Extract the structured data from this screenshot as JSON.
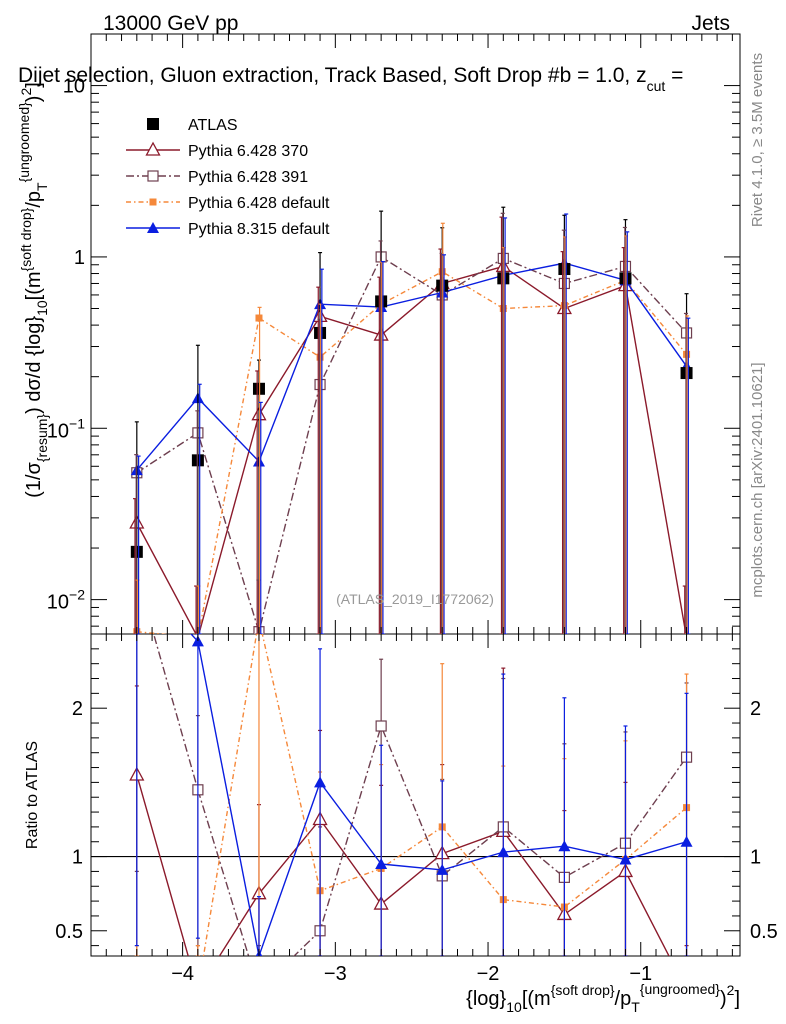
{
  "header": {
    "energy": "13000 GeV pp",
    "category": "Jets",
    "title": "Dijet selection, Gluon extraction, Track Based, Soft Drop #b = 1.0, z",
    "title_sub": "cut",
    "title_tail": " =",
    "rivet": "Rivet 4.1.0, ≥ 3.5M events",
    "mcplots": "mcplots.cern.ch [arXiv:2401.10621]",
    "analysis": "(ATLAS_2019_I1772062)"
  },
  "main_ylabel": {
    "p1": "(1/σ",
    "sub1": "{resum}",
    "p2": ") dσ/d {log}",
    "sub2": "10",
    "p3": "[(m",
    "sup3": "{soft drop}",
    "p4": "/p",
    "sub4": "T",
    "sup4": "{ungroomed}",
    "p5": ")",
    "sup5": "2",
    "p6": "]"
  },
  "ratio_ylabel": "Ratio to ATLAS",
  "xlabel": {
    "p1": "{log}",
    "sub1": "10",
    "p2": "[(m",
    "sup2": "{soft drop}",
    "p3": "/p",
    "sub3": "T",
    "sup3": "{ungroomed}",
    "p4": ")",
    "sup4": "2",
    "p5": "]"
  },
  "colors": {
    "atlas": "#000000",
    "py6_370": "#8b1a2b",
    "py6_391": "#6e3f4f",
    "py6_default": "#f5883a",
    "py8_default": "#0a1ee0"
  },
  "chart_data": {
    "type": "scatter",
    "x": [
      -4.3,
      -3.9,
      -3.5,
      -3.1,
      -2.7,
      -2.3,
      -1.9,
      -1.5,
      -1.1,
      -0.7
    ],
    "x_ticks": [
      -4,
      -3,
      -2,
      -1
    ],
    "x_tick_labels": [
      "−4",
      "−3",
      "−2",
      "−1"
    ],
    "xlim": [
      -4.6,
      -0.35
    ],
    "main": {
      "yscale": "log",
      "ylim": [
        0.0063,
        20
      ],
      "y_ticks": [
        0.01,
        0.1,
        1,
        10
      ],
      "y_tick_labels": [
        "10^{-2}",
        "10^{-1}",
        "1",
        "10"
      ]
    },
    "ratio": {
      "ylim": [
        0.33,
        2.5
      ],
      "y_ticks": [
        0.5,
        1,
        2
      ],
      "y_tick_labels": [
        "0.5",
        "1",
        "2"
      ],
      "reference": 1
    },
    "legend_position": "top-left",
    "series": [
      {
        "name": "ATLAS",
        "style": "data",
        "color_key": "atlas",
        "values": [
          0.019,
          0.065,
          0.17,
          0.36,
          0.55,
          0.68,
          0.75,
          0.85,
          0.75,
          0.21
        ],
        "err_lo": [
          0.019,
          0.065,
          0.17,
          0.36,
          0.55,
          0.68,
          0.75,
          0.85,
          0.75,
          0.21
        ],
        "err_hi": [
          0.09,
          0.24,
          0.08,
          0.7,
          1.3,
          0.8,
          1.2,
          0.9,
          0.9,
          0.4
        ]
      },
      {
        "name": "Pythia 6.428 370",
        "style": "triangle-open",
        "line": "solid",
        "color_key": "py6_370",
        "values": [
          0.028,
          0.006,
          0.12,
          0.45,
          0.35,
          0.7,
          0.88,
          0.5,
          0.68,
          0.006
        ],
        "ratio": [
          1.55,
          0.1,
          0.75,
          1.25,
          0.68,
          1.02,
          1.17,
          0.61,
          0.9,
          0.1
        ],
        "ratio_err_lo": [
          1.3,
          0.3,
          0.7,
          1.0,
          0.7,
          0.8,
          1.0,
          0.6,
          0.7,
          0.3
        ],
        "ratio_err_hi": [
          0.6,
          0.3,
          0.6,
          0.6,
          0.8,
          0.6,
          1.1,
          0.7,
          0.6,
          0.3
        ]
      },
      {
        "name": "Pythia 6.428 391",
        "style": "square-open",
        "line": "dashdot",
        "color_key": "py6_391",
        "values": [
          0.055,
          0.094,
          0.0065,
          0.18,
          1.0,
          0.6,
          0.98,
          0.7,
          0.88,
          0.36
        ],
        "ratio": [
          2.9,
          1.45,
          0.1,
          0.5,
          1.88,
          0.87,
          1.2,
          0.86,
          1.09,
          1.67
        ],
        "ratio_err_lo": [
          2.0,
          1.2,
          0.3,
          0.5,
          1.6,
          0.8,
          1.0,
          0.8,
          0.9,
          1.4
        ],
        "ratio_err_hi": [
          0.8,
          0.5,
          0.3,
          0.7,
          0.45,
          0.65,
          1.0,
          0.9,
          0.75,
          0.5
        ]
      },
      {
        "name": "Pythia 6.428 default",
        "style": "square-filled-small",
        "line": "dashdot-fine",
        "color_key": "py6_default",
        "values": [
          0.0065,
          0.006,
          0.44,
          0.26,
          0.53,
          0.82,
          0.5,
          0.52,
          0.73,
          0.27
        ],
        "ratio": [
          0.1,
          0.1,
          2.6,
          0.77,
          0.92,
          1.2,
          0.71,
          0.66,
          0.98,
          1.33
        ],
        "ratio_err_lo": [
          0.3,
          0.3,
          2.3,
          0.7,
          0.8,
          1.0,
          0.7,
          0.6,
          0.8,
          1.1
        ],
        "ratio_err_hi": [
          0.3,
          0.3,
          0.4,
          0.8,
          0.7,
          1.1,
          0.9,
          1.0,
          0.8,
          0.9
        ]
      },
      {
        "name": "Pythia 8.315 default",
        "style": "triangle-filled",
        "line": "solid",
        "color_key": "py8_default",
        "values": [
          0.057,
          0.15,
          0.064,
          0.53,
          0.51,
          0.62,
          0.78,
          0.92,
          0.73,
          0.23
        ],
        "ratio": [
          2.9,
          2.45,
          0.33,
          1.5,
          0.95,
          0.91,
          1.03,
          1.07,
          0.98,
          1.1
        ],
        "ratio_err_lo": [
          2.5,
          2.0,
          0.3,
          1.3,
          0.9,
          0.8,
          0.9,
          1.0,
          0.9,
          0.9
        ],
        "ratio_err_hi": [
          0.6,
          0.5,
          0.4,
          0.9,
          0.8,
          0.6,
          1.2,
          1.0,
          0.9,
          1.0
        ]
      }
    ]
  }
}
